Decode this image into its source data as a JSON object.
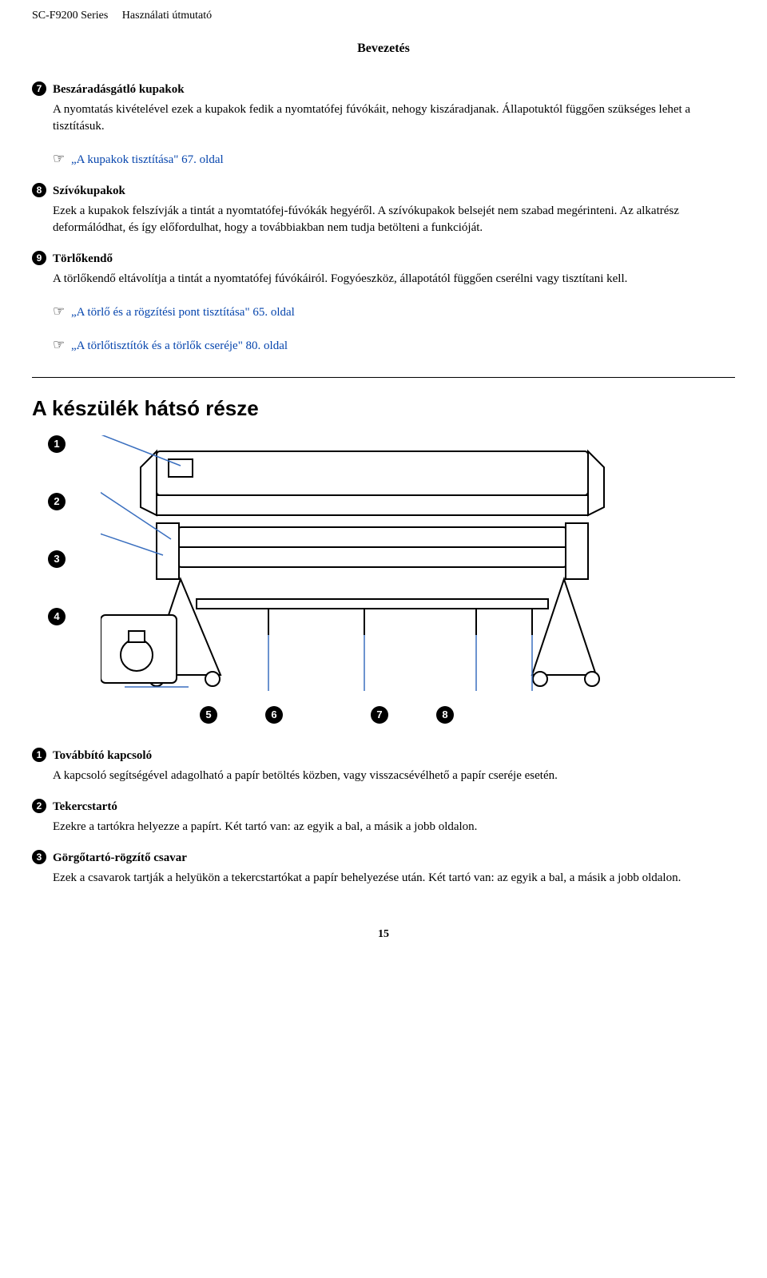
{
  "header": {
    "series": "SC-F9200 Series",
    "guide": "Használati útmutató"
  },
  "section_top": "Bevezetés",
  "items_upper": [
    {
      "num": "7",
      "title": "Beszáradásgátló kupakok",
      "desc": "A nyomtatás kivételével ezek a kupakok fedik a nyomtatófej fúvókáit, nehogy kiszáradjanak. Állapotuktól függően szükséges lehet a tisztításuk.",
      "links": [
        "„A kupakok tisztítása\" 67. oldal"
      ]
    },
    {
      "num": "8",
      "title": "Szívókupakok",
      "desc": "Ezek a kupakok felszívják a tintát a nyomtatófej-fúvókák hegyéről. A szívókupakok belsejét nem szabad megérinteni. Az alkatrész deformálódhat, és így előfordulhat, hogy a továbbiakban nem tudja betölteni a funkcióját.",
      "links": []
    },
    {
      "num": "9",
      "title": "Törlőkendő",
      "desc": "A törlőkendő eltávolítja a tintát a nyomtatófej fúvókáiról. Fogyóeszköz, állapotától függően cserélni vagy tisztítani kell.",
      "links": [
        "„A törlő és a rögzítési pont tisztítása\" 65. oldal",
        "„A törlőtisztítók és a törlők cseréje\" 80. oldal"
      ]
    }
  ],
  "heading_back": "A készülék hátsó része",
  "diagram_callouts_left": [
    "1",
    "2",
    "3",
    "4"
  ],
  "diagram_callouts_bottom": [
    "5",
    "6",
    "7",
    "8"
  ],
  "items_lower": [
    {
      "num": "1",
      "title": "Továbbító kapcsoló",
      "desc": "A kapcsoló segítségével adagolható a papír betöltés közben, vagy visszacsévélhető a papír cseréje esetén."
    },
    {
      "num": "2",
      "title": "Tekercstartó",
      "desc": "Ezekre a tartókra helyezze a papírt. Két tartó van: az egyik a bal, a másik a jobb oldalon."
    },
    {
      "num": "3",
      "title": "Görgőtartó-rögzítő csavar",
      "desc": "Ezek a csavarok tartják a helyükön a tekercstartókat a papír behelyezése után. Két tartó van: az egyik a bal, a másik a jobb oldalon."
    }
  ],
  "page_number": "15"
}
